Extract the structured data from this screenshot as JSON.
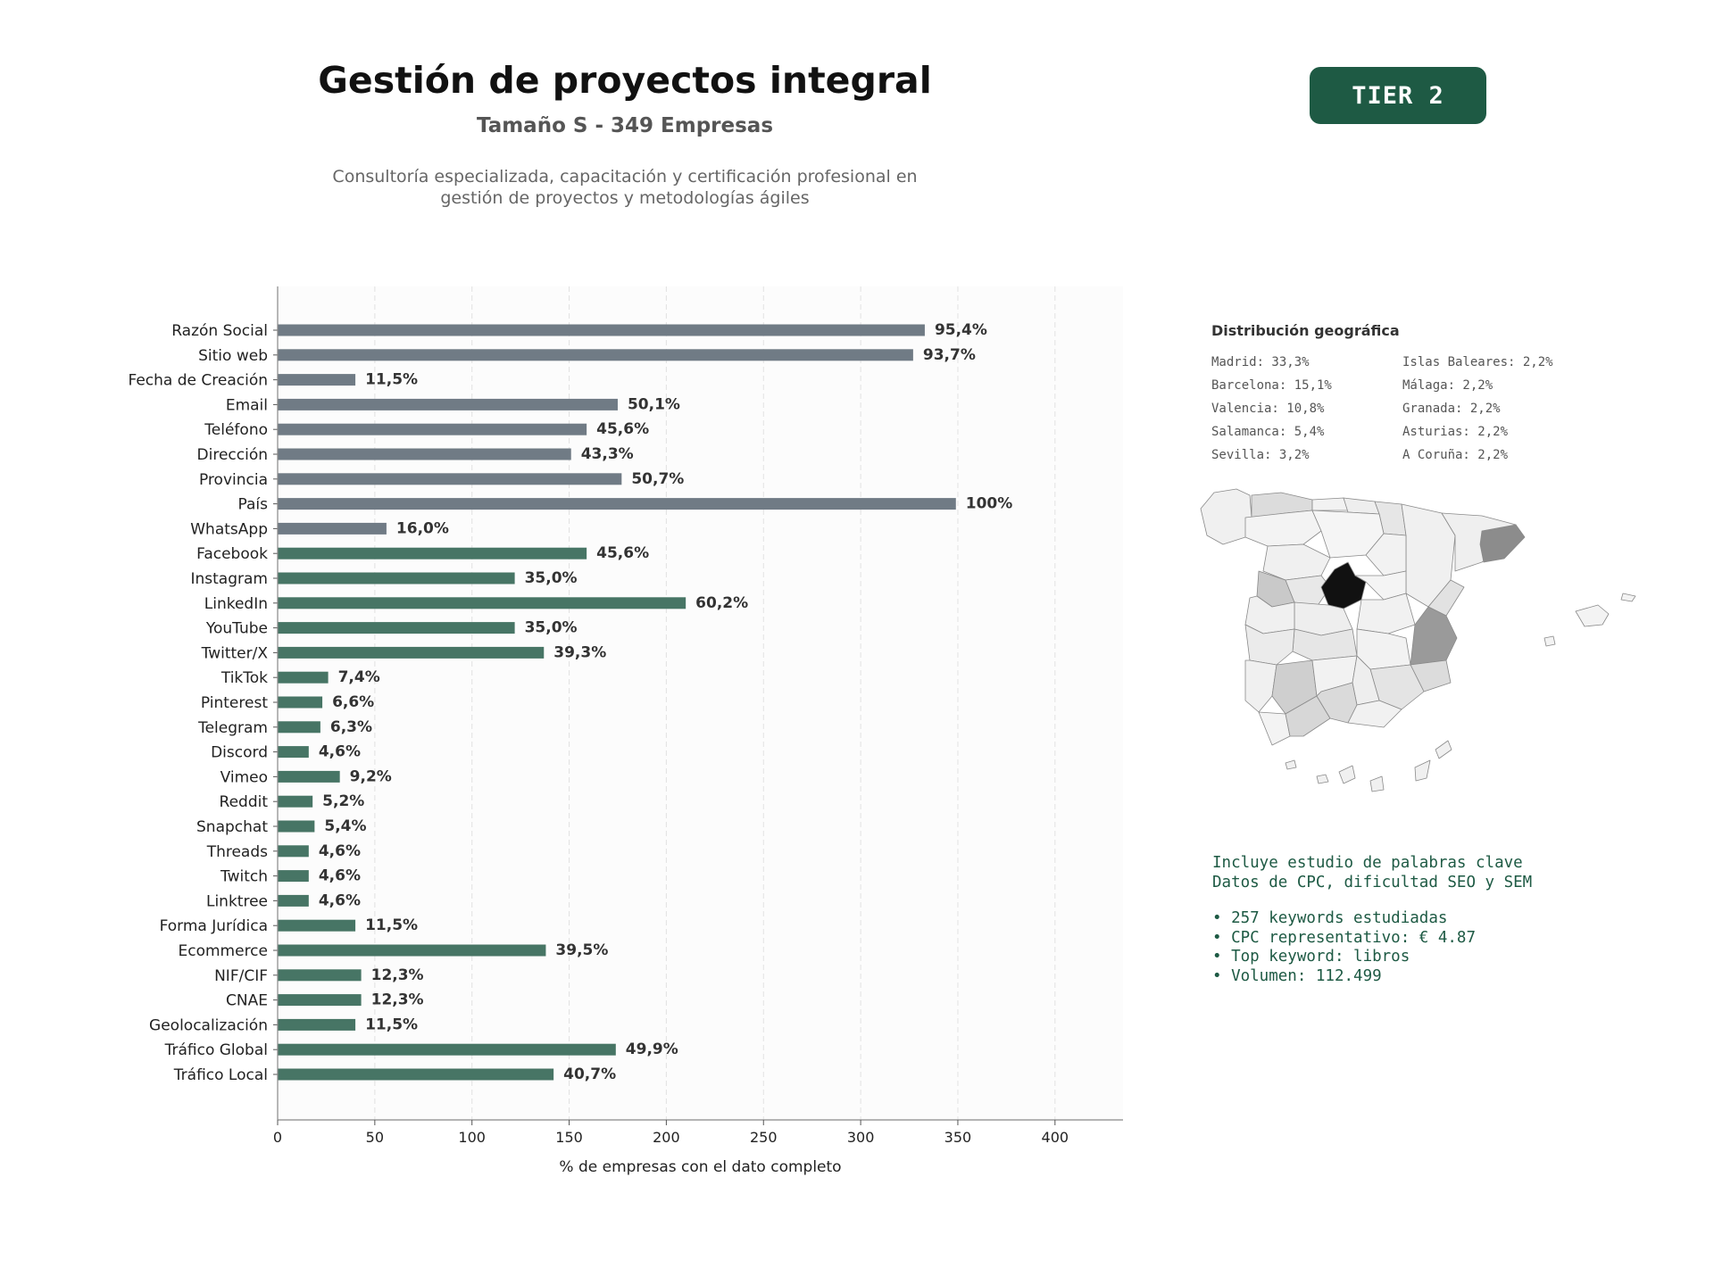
{
  "header": {
    "title": "Gestión de proyectos integral",
    "subtitle": "Tamaño S - 349 Empresas",
    "description_line1": "Consultoría especializada, capacitación y certificación profesional en",
    "description_line2": "gestión de proyectos y metodologías ágiles",
    "tier_badge": "TIER 2"
  },
  "colors": {
    "gray_bar": "#707b85",
    "green_bar": "#477565",
    "accent": "#1e5a44"
  },
  "chart_data": {
    "type": "bar",
    "orientation": "horizontal",
    "xlabel": "% de empresas con el dato completo",
    "xlim": [
      0,
      435
    ],
    "xticks": [
      0,
      50,
      100,
      150,
      200,
      250,
      300,
      350,
      400
    ],
    "grid": true,
    "categories": [
      "Razón Social",
      "Sitio web",
      "Fecha de Creación",
      "Email",
      "Teléfono",
      "Dirección",
      "Provincia",
      "País",
      "WhatsApp",
      "Facebook",
      "Instagram",
      "LinkedIn",
      "YouTube",
      "Twitter/X",
      "TikTok",
      "Pinterest",
      "Telegram",
      "Discord",
      "Vimeo",
      "Reddit",
      "Snapchat",
      "Threads",
      "Twitch",
      "Linktree",
      "Forma Jurídica",
      "Ecommerce",
      "NIF/CIF",
      "CNAE",
      "Geolocalización",
      "Tráfico Global",
      "Tráfico Local"
    ],
    "values": [
      333,
      327,
      40,
      175,
      159,
      151,
      177,
      349,
      56,
      159,
      122,
      210,
      122,
      137,
      26,
      23,
      22,
      16,
      32,
      18,
      19,
      16,
      16,
      16,
      40,
      138,
      43,
      43,
      40,
      174,
      142
    ],
    "labels": [
      "95,4%",
      "93,7%",
      "11,5%",
      "50,1%",
      "45,6%",
      "43,3%",
      "50,7%",
      "100%",
      "16,0%",
      "45,6%",
      "35,0%",
      "60,2%",
      "35,0%",
      "39,3%",
      "7,4%",
      "6,6%",
      "6,3%",
      "4,6%",
      "9,2%",
      "5,2%",
      "5,4%",
      "4,6%",
      "4,6%",
      "4,6%",
      "11,5%",
      "39,5%",
      "12,3%",
      "12,3%",
      "11,5%",
      "49,9%",
      "40,7%"
    ],
    "groups": [
      "gray",
      "gray",
      "gray",
      "gray",
      "gray",
      "gray",
      "gray",
      "gray",
      "gray",
      "green",
      "green",
      "green",
      "green",
      "green",
      "green",
      "green",
      "green",
      "green",
      "green",
      "green",
      "green",
      "green",
      "green",
      "green",
      "green",
      "green",
      "green",
      "green",
      "green",
      "green",
      "green"
    ]
  },
  "geo": {
    "title": "Distribución geográfica",
    "items": [
      "Madrid: 33,3%",
      "Islas Baleares: 2,2%",
      "Barcelona: 15,1%",
      "Málaga: 2,2%",
      "Valencia: 10,8%",
      "Granada: 2,2%",
      "Salamanca: 5,4%",
      "Asturias: 2,2%",
      "Sevilla: 3,2%",
      "A Coruña: 2,2%"
    ]
  },
  "keywords": {
    "line1": "Incluye estudio de palabras clave",
    "line2": "Datos de CPC, dificultad SEO y SEM",
    "bullet1": "• 257 keywords estudiadas",
    "bullet2": "• CPC representativo: € 4.87",
    "bullet3": "• Top keyword: libros",
    "bullet4": "• Volumen: 112.499"
  }
}
